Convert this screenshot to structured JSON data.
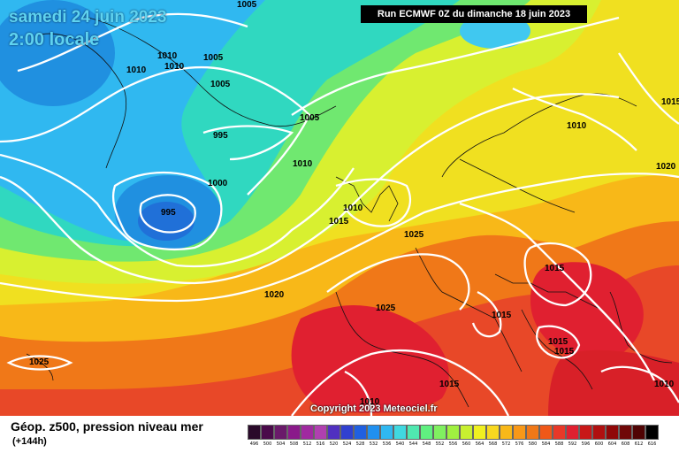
{
  "header": {
    "valid_date": "samedi 24 juin 2023",
    "valid_time": "2:00 locale",
    "run_info": "Run ECMWF 0Z du dimanche 18 juin 2023"
  },
  "map": {
    "pressure_labels": [
      "1005",
      "1010",
      "1010",
      "1010",
      "1005",
      "1005",
      "995",
      "1005",
      "1010",
      "1000",
      "995",
      "1010",
      "1015",
      "1025",
      "1015",
      "1010",
      "1020",
      "1025",
      "1015",
      "1015",
      "1025",
      "1015",
      "1010",
      "1020",
      "1015",
      "1010",
      "1015"
    ],
    "copyright": "Copyright 2023 Meteociel.fr"
  },
  "footer": {
    "title": "Géop. z500, pression niveau mer",
    "subtitle": "(+144h)"
  },
  "legend": {
    "values": [
      "496",
      "500",
      "504",
      "508",
      "512",
      "516",
      "520",
      "524",
      "528",
      "532",
      "536",
      "540",
      "544",
      "548",
      "552",
      "556",
      "560",
      "564",
      "568",
      "572",
      "576",
      "580",
      "584",
      "588",
      "592",
      "596",
      "600",
      "604",
      "608",
      "612",
      "616"
    ],
    "colors": [
      "#2a0a2a",
      "#4a0a4a",
      "#6a1a6a",
      "#8a1a8a",
      "#a02aa0",
      "#b040b0",
      "#5030c0",
      "#3040d0",
      "#2060e0",
      "#2090f0",
      "#30b8f0",
      "#40d8e0",
      "#50e8b0",
      "#60f080",
      "#80f060",
      "#a0f040",
      "#c8f030",
      "#f0f020",
      "#f8d820",
      "#f8b818",
      "#f89818",
      "#f07818",
      "#f05818",
      "#e83828",
      "#e02030",
      "#c81818",
      "#b01010",
      "#900808",
      "#700808",
      "#500404",
      "#000000"
    ]
  }
}
